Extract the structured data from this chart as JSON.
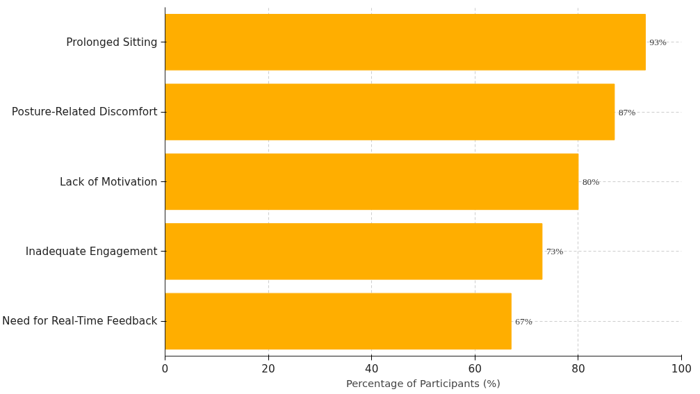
{
  "chart_data": {
    "type": "bar",
    "orientation": "horizontal",
    "xlabel": "Percentage of Participants (%)",
    "categories": [
      "Prolonged Sitting",
      "Posture-Related Discomfort",
      "Lack of Motivation",
      "Inadequate Engagement",
      "Need for Real-Time Feedback"
    ],
    "values": [
      93,
      87,
      80,
      73,
      67
    ],
    "value_labels": [
      "93%",
      "87%",
      "80%",
      "73%",
      "67%"
    ],
    "color": "#ffae00",
    "xlim": [
      0,
      100
    ],
    "xticks": [
      0,
      20,
      40,
      60,
      80,
      100
    ],
    "grid": true
  }
}
